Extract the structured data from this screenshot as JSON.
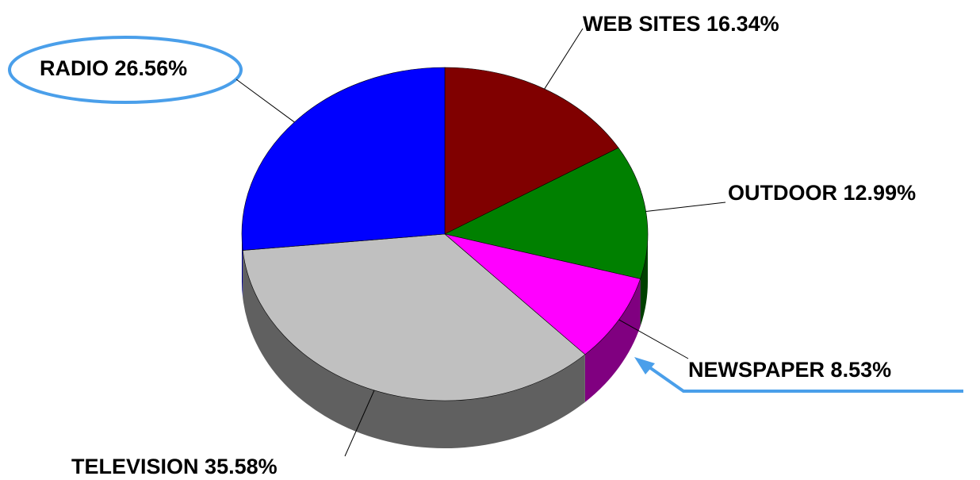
{
  "chart_data": {
    "type": "pie3d",
    "categories": [
      "WEB SITES",
      "OUTDOOR",
      "NEWSPAPER",
      "TELEVISION",
      "RADIO"
    ],
    "values": [
      16.34,
      12.99,
      8.53,
      35.58,
      26.56
    ],
    "value_labels": [
      "16.34%",
      "12.99%",
      "8.53%",
      "35.58%",
      "26.56%"
    ],
    "colors": [
      "#800000",
      "#008000",
      "#ff00ff",
      "#c0c0c0",
      "#0000ff"
    ]
  }
}
